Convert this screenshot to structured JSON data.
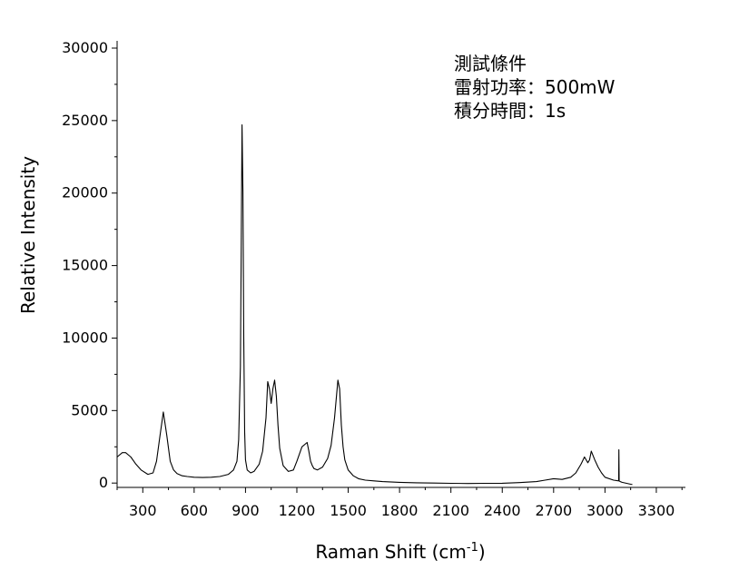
{
  "chart_data": {
    "type": "line",
    "xlabel": "Raman Shift (cm",
    "xlabel_sup": "-1",
    "xlabel_end": ")",
    "ylabel": "Relative Intensity",
    "xlim": [
      150,
      3470
    ],
    "ylim": [
      -300,
      30500
    ],
    "x_ticks": [
      300,
      600,
      900,
      1200,
      1500,
      1800,
      2100,
      2400,
      2700,
      3000,
      3300
    ],
    "y_ticks": [
      0,
      5000,
      10000,
      15000,
      20000,
      25000,
      30000
    ],
    "grid": false,
    "annotations": [
      "測試條件",
      "雷射功率：500mW",
      "積分時間：1s"
    ],
    "series": [
      {
        "color": "#000000",
        "x": [
          150,
          180,
          200,
          230,
          260,
          290,
          330,
          360,
          380,
          400,
          420,
          440,
          460,
          480,
          500,
          530,
          560,
          600,
          650,
          700,
          750,
          800,
          830,
          850,
          860,
          870,
          875,
          880,
          885,
          890,
          895,
          900,
          910,
          930,
          950,
          980,
          1000,
          1020,
          1030,
          1040,
          1050,
          1060,
          1070,
          1080,
          1090,
          1100,
          1120,
          1150,
          1180,
          1200,
          1230,
          1260,
          1270,
          1280,
          1290,
          1300,
          1320,
          1350,
          1380,
          1400,
          1420,
          1440,
          1450,
          1460,
          1470,
          1480,
          1500,
          1530,
          1560,
          1600,
          1650,
          1700,
          1800,
          1900,
          2000,
          2100,
          2200,
          2300,
          2400,
          2500,
          2600,
          2650,
          2700,
          2750,
          2800,
          2830,
          2860,
          2880,
          2900,
          2910,
          2920,
          2940,
          2960,
          2980,
          3000,
          3050,
          3080,
          3081,
          3083,
          3090,
          3100,
          3150,
          3160
        ],
        "y": [
          1800,
          2100,
          2100,
          1800,
          1300,
          900,
          600,
          700,
          1500,
          3200,
          4900,
          3300,
          1500,
          900,
          650,
          500,
          450,
          400,
          380,
          400,
          450,
          600,
          900,
          1500,
          3000,
          8000,
          16000,
          24700,
          20000,
          10000,
          3500,
          1600,
          900,
          700,
          800,
          1300,
          2200,
          4500,
          7000,
          6500,
          5500,
          6500,
          7100,
          6000,
          4000,
          2400,
          1200,
          800,
          900,
          1500,
          2500,
          2800,
          2200,
          1500,
          1200,
          1000,
          900,
          1100,
          1700,
          2600,
          4500,
          7100,
          6500,
          4000,
          2500,
          1600,
          900,
          500,
          300,
          200,
          150,
          100,
          50,
          20,
          0,
          -20,
          -30,
          -20,
          -10,
          30,
          100,
          200,
          300,
          250,
          400,
          700,
          1300,
          1800,
          1400,
          1600,
          2200,
          1600,
          1100,
          700,
          400,
          200,
          150,
          2300,
          150,
          100,
          50,
          -80,
          -100
        ]
      }
    ]
  }
}
